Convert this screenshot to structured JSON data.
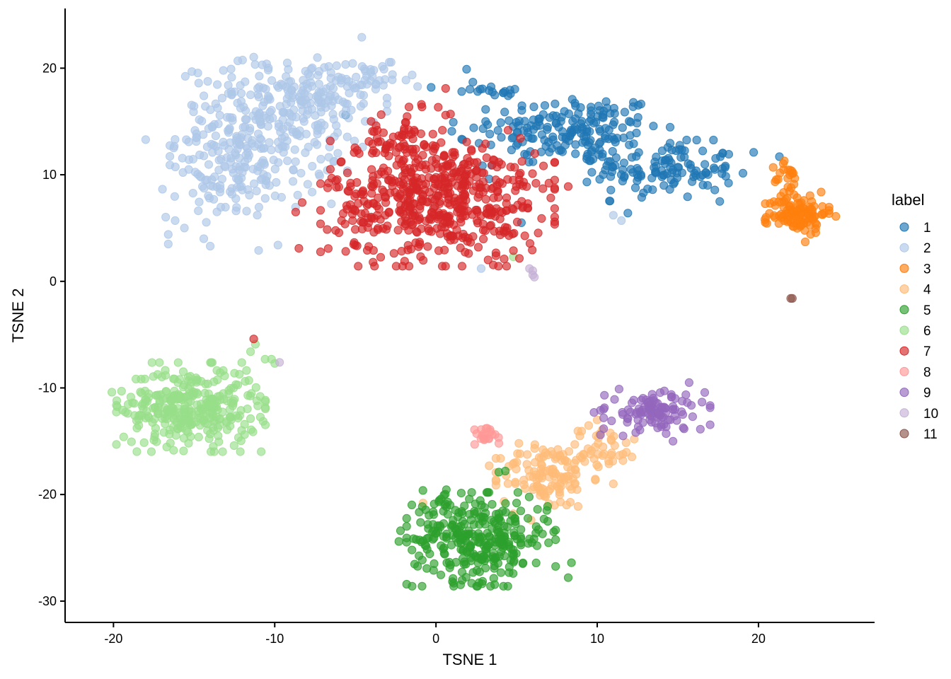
{
  "chart_data": {
    "type": "scatter",
    "xlabel": "TSNE 1",
    "ylabel": "TSNE 2",
    "xlim": [
      -23,
      27.2
    ],
    "ylim": [
      -32,
      25.6
    ],
    "xticks": [
      -20,
      -10,
      0,
      10,
      20
    ],
    "xtick_labels": [
      "-20",
      "-10",
      "0",
      "10",
      "20"
    ],
    "yticks": [
      -30,
      -20,
      -10,
      0,
      10,
      20
    ],
    "ytick_labels": [
      "-30",
      "-20",
      "-10",
      "0",
      "10",
      "20"
    ],
    "grid": false,
    "point_opacity": 0.65,
    "legend": {
      "title": "label",
      "placement": "right"
    },
    "series": [
      {
        "name": "1",
        "color": "#1f77b4",
        "clusters": [
          {
            "cx": 8.8,
            "cy": 14.2,
            "sx": 2.6,
            "sy": 1.7,
            "n": 160
          },
          {
            "cx": 14.2,
            "cy": 10.4,
            "sx": 2.2,
            "sy": 1.3,
            "n": 120
          },
          {
            "cx": 4.5,
            "cy": 14.0,
            "sx": 1.6,
            "sy": 2.0,
            "n": 30
          },
          {
            "cx": 3.5,
            "cy": 18.1,
            "sx": 1.4,
            "sy": 0.4,
            "n": 14
          }
        ],
        "points": [
          [
            19.7,
            12.1
          ],
          [
            21.3,
            11.7
          ],
          [
            1.9,
            19.9
          ],
          [
            -5.6,
            15.6
          ],
          [
            -0.3,
            18.2
          ],
          [
            11.9,
            6.4
          ],
          [
            5.3,
            5.5
          ],
          [
            17.6,
            7.5
          ]
        ]
      },
      {
        "name": "2",
        "color": "#aec7e8",
        "clusters": [
          {
            "cx": -11.0,
            "cy": 14.0,
            "sx": 2.5,
            "sy": 3.2,
            "n": 280
          },
          {
            "cx": -7.0,
            "cy": 17.0,
            "sx": 1.8,
            "sy": 2.0,
            "n": 110
          },
          {
            "cx": -13.0,
            "cy": 9.5,
            "sx": 1.8,
            "sy": 1.8,
            "n": 60
          },
          {
            "cx": -4.0,
            "cy": 18.8,
            "sx": 1.3,
            "sy": 0.8,
            "n": 25
          }
        ],
        "points": [
          [
            -18.0,
            13.3
          ],
          [
            -16.6,
            4.4
          ],
          [
            -16.6,
            3.5
          ],
          [
            -15.6,
            5.0
          ],
          [
            -14.4,
            4.0
          ],
          [
            -14.0,
            3.3
          ],
          [
            -11.0,
            2.9
          ],
          [
            -9.8,
            3.4
          ],
          [
            -4.6,
            22.9
          ],
          [
            11.0,
            6.2
          ],
          [
            11.5,
            5.7
          ],
          [
            2.8,
            1.2
          ]
        ]
      },
      {
        "name": "3",
        "color": "#ff7f0e",
        "clusters": [
          {
            "cx": 22.4,
            "cy": 6.4,
            "sx": 0.9,
            "sy": 0.9,
            "n": 110
          },
          {
            "cx": 21.9,
            "cy": 9.5,
            "sx": 0.45,
            "sy": 0.9,
            "n": 22
          }
        ],
        "points": [
          [
            20.4,
            5.8
          ],
          [
            22.9,
            3.7
          ],
          [
            24.8,
            6.1
          ],
          [
            21.6,
            11.3
          ]
        ]
      },
      {
        "name": "4",
        "color": "#ffbb78",
        "clusters": [
          {
            "cx": 6.8,
            "cy": -18.3,
            "sx": 1.4,
            "sy": 1.5,
            "n": 120
          },
          {
            "cx": 10.2,
            "cy": -15.6,
            "sx": 1.2,
            "sy": 1.0,
            "n": 45
          }
        ],
        "points": [
          [
            3.3,
            -17.3
          ],
          [
            4.8,
            -21.8
          ],
          [
            5.9,
            -22.4
          ],
          [
            11.0,
            -19.0
          ],
          [
            10.0,
            -13.0
          ],
          [
            -0.8,
            -20.8
          ],
          [
            12.3,
            -14.8
          ]
        ]
      },
      {
        "name": "5",
        "color": "#2ca02c",
        "clusters": [
          {
            "cx": 2.8,
            "cy": -24.2,
            "sx": 2.1,
            "sy": 2.0,
            "n": 300
          },
          {
            "cx": 0.2,
            "cy": -21.2,
            "sx": 0.8,
            "sy": 1.0,
            "n": 20
          }
        ],
        "points": [
          [
            -2.3,
            -24.4
          ],
          [
            -2.2,
            -23.4
          ],
          [
            8.4,
            -26.4
          ],
          [
            8.2,
            -27.8
          ],
          [
            7.3,
            -23.5
          ],
          [
            6.7,
            -22.3
          ],
          [
            3.9,
            -17.9
          ],
          [
            4.3,
            -17.8
          ]
        ]
      },
      {
        "name": "6",
        "color": "#98df8a",
        "clusters": [
          {
            "cx": -15.2,
            "cy": -11.8,
            "sx": 2.1,
            "sy": 1.9,
            "n": 330
          }
        ],
        "points": [
          [
            -20.1,
            -10.4
          ],
          [
            -19.5,
            -10.3
          ],
          [
            -11.2,
            -5.9
          ],
          [
            -11.5,
            -6.6
          ],
          [
            -10.6,
            -7.3
          ],
          [
            -10.2,
            -7.3
          ],
          [
            -10.9,
            -10.8
          ],
          [
            -10.0,
            -7.7
          ],
          [
            4.8,
            2.3
          ]
        ]
      },
      {
        "name": "7",
        "color": "#d62728",
        "clusters": [
          {
            "cx": 0.1,
            "cy": 7.8,
            "sx": 3.3,
            "sy": 2.9,
            "n": 560
          },
          {
            "cx": -2.5,
            "cy": 13.5,
            "sx": 1.2,
            "sy": 1.3,
            "n": 45
          }
        ],
        "points": [
          [
            -11.3,
            -5.4
          ],
          [
            -8.7,
            6.5
          ],
          [
            -8.3,
            7.4
          ],
          [
            -8.5,
            3.1
          ],
          [
            0.6,
            15.6
          ],
          [
            0.9,
            15.7
          ],
          [
            5.2,
            9.1
          ],
          [
            6.2,
            9.2
          ],
          [
            8.2,
            8.9
          ],
          [
            5.7,
            7.3
          ],
          [
            -0.9,
            16.6
          ],
          [
            0.6,
            18.1
          ]
        ]
      },
      {
        "name": "8",
        "color": "#ff9896",
        "clusters": [
          {
            "cx": 3.0,
            "cy": -14.6,
            "sx": 0.4,
            "sy": 0.45,
            "n": 18
          }
        ],
        "points": [
          [
            2.4,
            -15.3
          ],
          [
            3.1,
            -13.8
          ],
          [
            3.9,
            -15.2
          ]
        ]
      },
      {
        "name": "9",
        "color": "#9467bd",
        "clusters": [
          {
            "cx": 13.7,
            "cy": -12.2,
            "sx": 1.5,
            "sy": 0.95,
            "n": 110
          }
        ],
        "points": [
          [
            15.7,
            -9.5
          ],
          [
            10.2,
            -12.1
          ],
          [
            9.8,
            -12.3
          ],
          [
            10.2,
            -14.4
          ],
          [
            11.6,
            -14.5
          ],
          [
            14.7,
            -15.0
          ]
        ]
      },
      {
        "name": "10",
        "color": "#c5b0d5",
        "clusters": [],
        "points": [
          [
            5.8,
            1.2
          ],
          [
            6.0,
            0.6
          ],
          [
            6.1,
            0.4
          ],
          [
            6.0,
            1.0
          ],
          [
            -9.7,
            -7.6
          ]
        ]
      },
      {
        "name": "11",
        "color": "#8c564b",
        "clusters": [],
        "points": [
          [
            22.0,
            -1.6
          ],
          [
            22.1,
            -1.6
          ]
        ]
      }
    ]
  }
}
